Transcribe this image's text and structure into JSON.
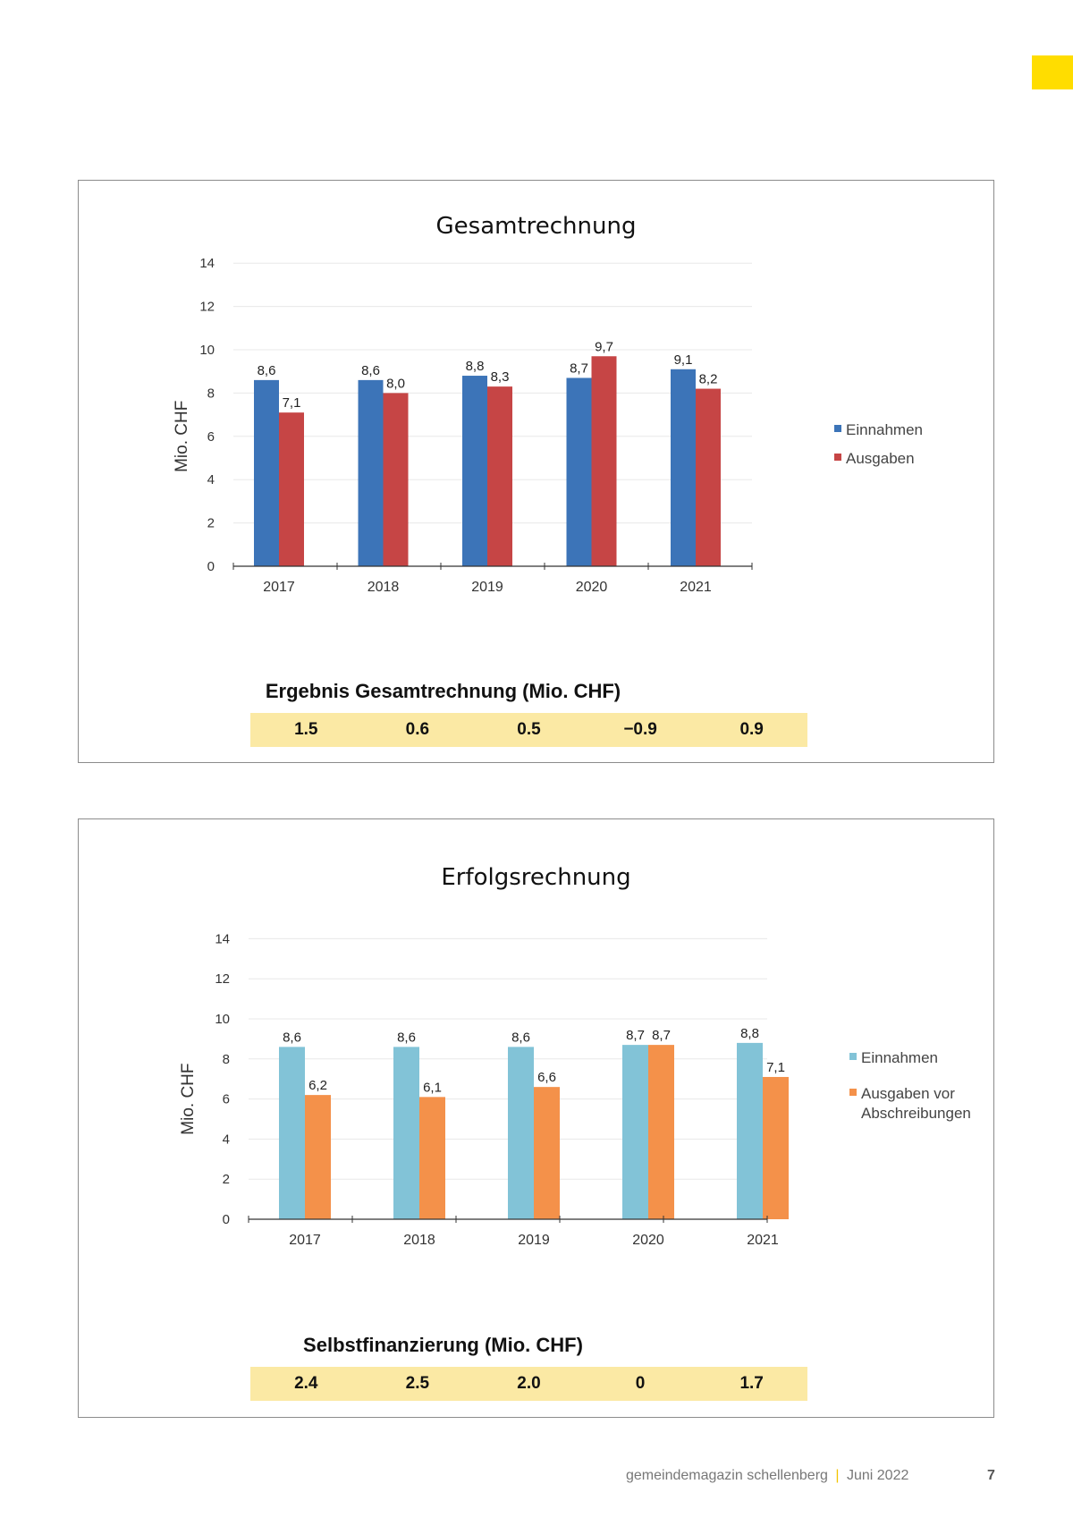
{
  "colors": {
    "accent": "#ffdd00",
    "einnahmen_blue": "#3c74b8",
    "ausgaben_red": "#c64545",
    "einnahmen_cyan": "#82c3d7",
    "ausgaben_orange": "#f4914a",
    "result_band": "#fbe9a4"
  },
  "chart_data": [
    {
      "type": "bar",
      "title": "Gesamtrechnung",
      "ylabel": "Mio. CHF",
      "xlabel": "",
      "categories": [
        "2017",
        "2018",
        "2019",
        "2020",
        "2021"
      ],
      "series": [
        {
          "name": "Einnahmen",
          "values": [
            8.6,
            8.6,
            8.8,
            8.7,
            9.1
          ],
          "labels": [
            "8,6",
            "8,6",
            "8,8",
            "8,7",
            "9,1"
          ]
        },
        {
          "name": "Ausgaben",
          "values": [
            7.1,
            8.0,
            8.3,
            9.7,
            8.2
          ],
          "labels": [
            "7,1",
            "8,0",
            "8,3",
            "9,7",
            "8,2"
          ]
        }
      ],
      "yticks": [
        0,
        2,
        4,
        6,
        8,
        10,
        12,
        14
      ],
      "ylim": [
        0,
        14
      ],
      "legend": "right",
      "result_title": "Ergebnis Gesamtrechnung (Mio. CHF)",
      "result_values": [
        "1.5",
        "0.6",
        "0.5",
        "−0.9",
        "0.9"
      ]
    },
    {
      "type": "bar",
      "title": "Erfolgsrechnung",
      "ylabel": "Mio. CHF",
      "xlabel": "",
      "categories": [
        "2017",
        "2018",
        "2019",
        "2020",
        "2021"
      ],
      "series": [
        {
          "name": "Einnahmen",
          "values": [
            8.6,
            8.6,
            8.6,
            8.7,
            8.8
          ],
          "labels": [
            "8,6",
            "8,6",
            "8,6",
            "8,7",
            "8,8"
          ]
        },
        {
          "name": "Ausgaben vor Abschreibungen",
          "values": [
            6.2,
            6.1,
            6.6,
            8.7,
            7.1
          ],
          "labels": [
            "6,2",
            "6,1",
            "6,6",
            "8,7",
            "7,1"
          ]
        }
      ],
      "yticks": [
        0,
        2,
        4,
        6,
        8,
        10,
        12,
        14
      ],
      "ylim": [
        0,
        14
      ],
      "legend": "right",
      "result_title": "Selbstfinanzierung (Mio. CHF)",
      "result_values": [
        "2.4",
        "2.5",
        "2.0",
        "0",
        "1.7"
      ]
    }
  ],
  "footer": {
    "magazine": "gemeindemagazin schellenberg",
    "separator": "|",
    "issue": "Juni 2022",
    "page_number": "7"
  }
}
